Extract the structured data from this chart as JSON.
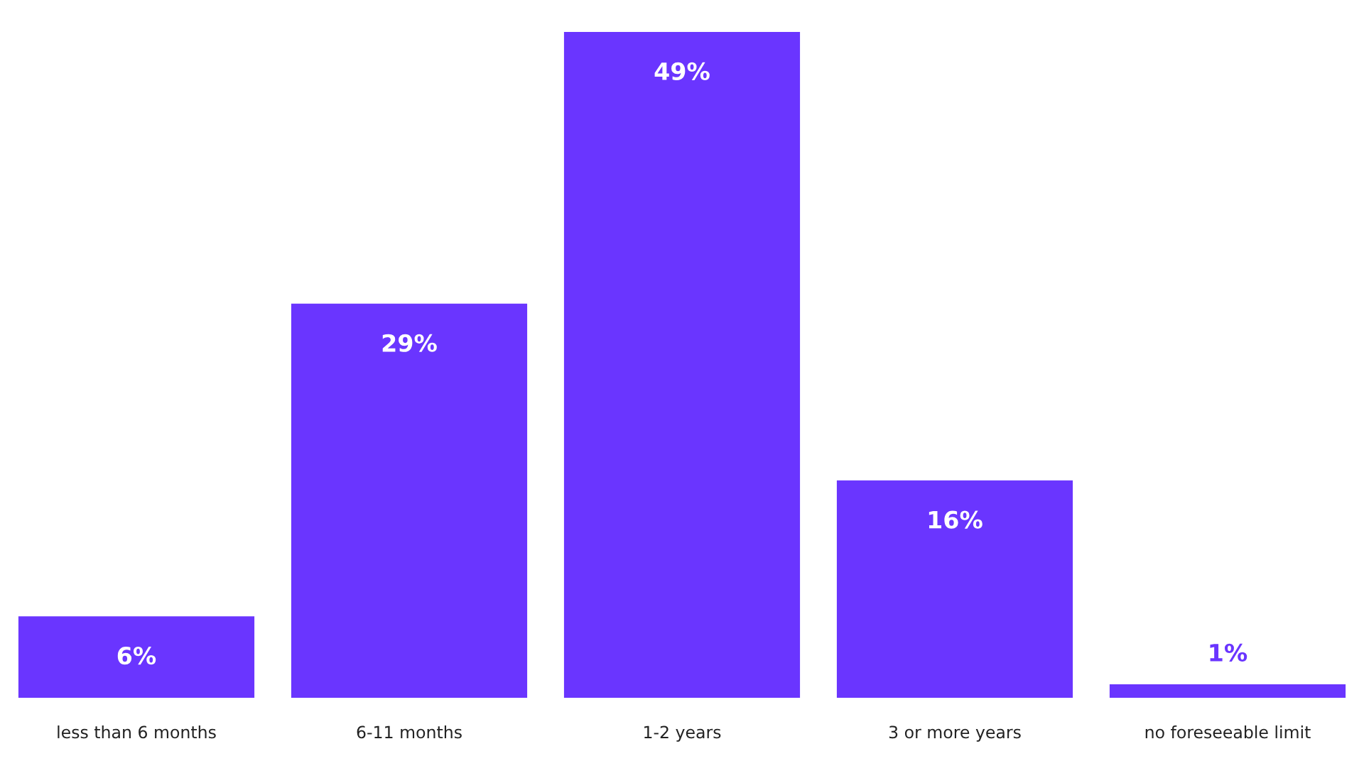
{
  "chart_data": {
    "type": "bar",
    "categories": [
      "less than 6 months",
      "6-11 months",
      "1-2 years",
      "3 or more years",
      "no foreseeable limit"
    ],
    "values": [
      6,
      29,
      49,
      16,
      1
    ],
    "value_labels": [
      "6%",
      "29%",
      "49%",
      "16%",
      "1%"
    ],
    "color": "#6a35ff",
    "grid": false,
    "legend": false
  }
}
